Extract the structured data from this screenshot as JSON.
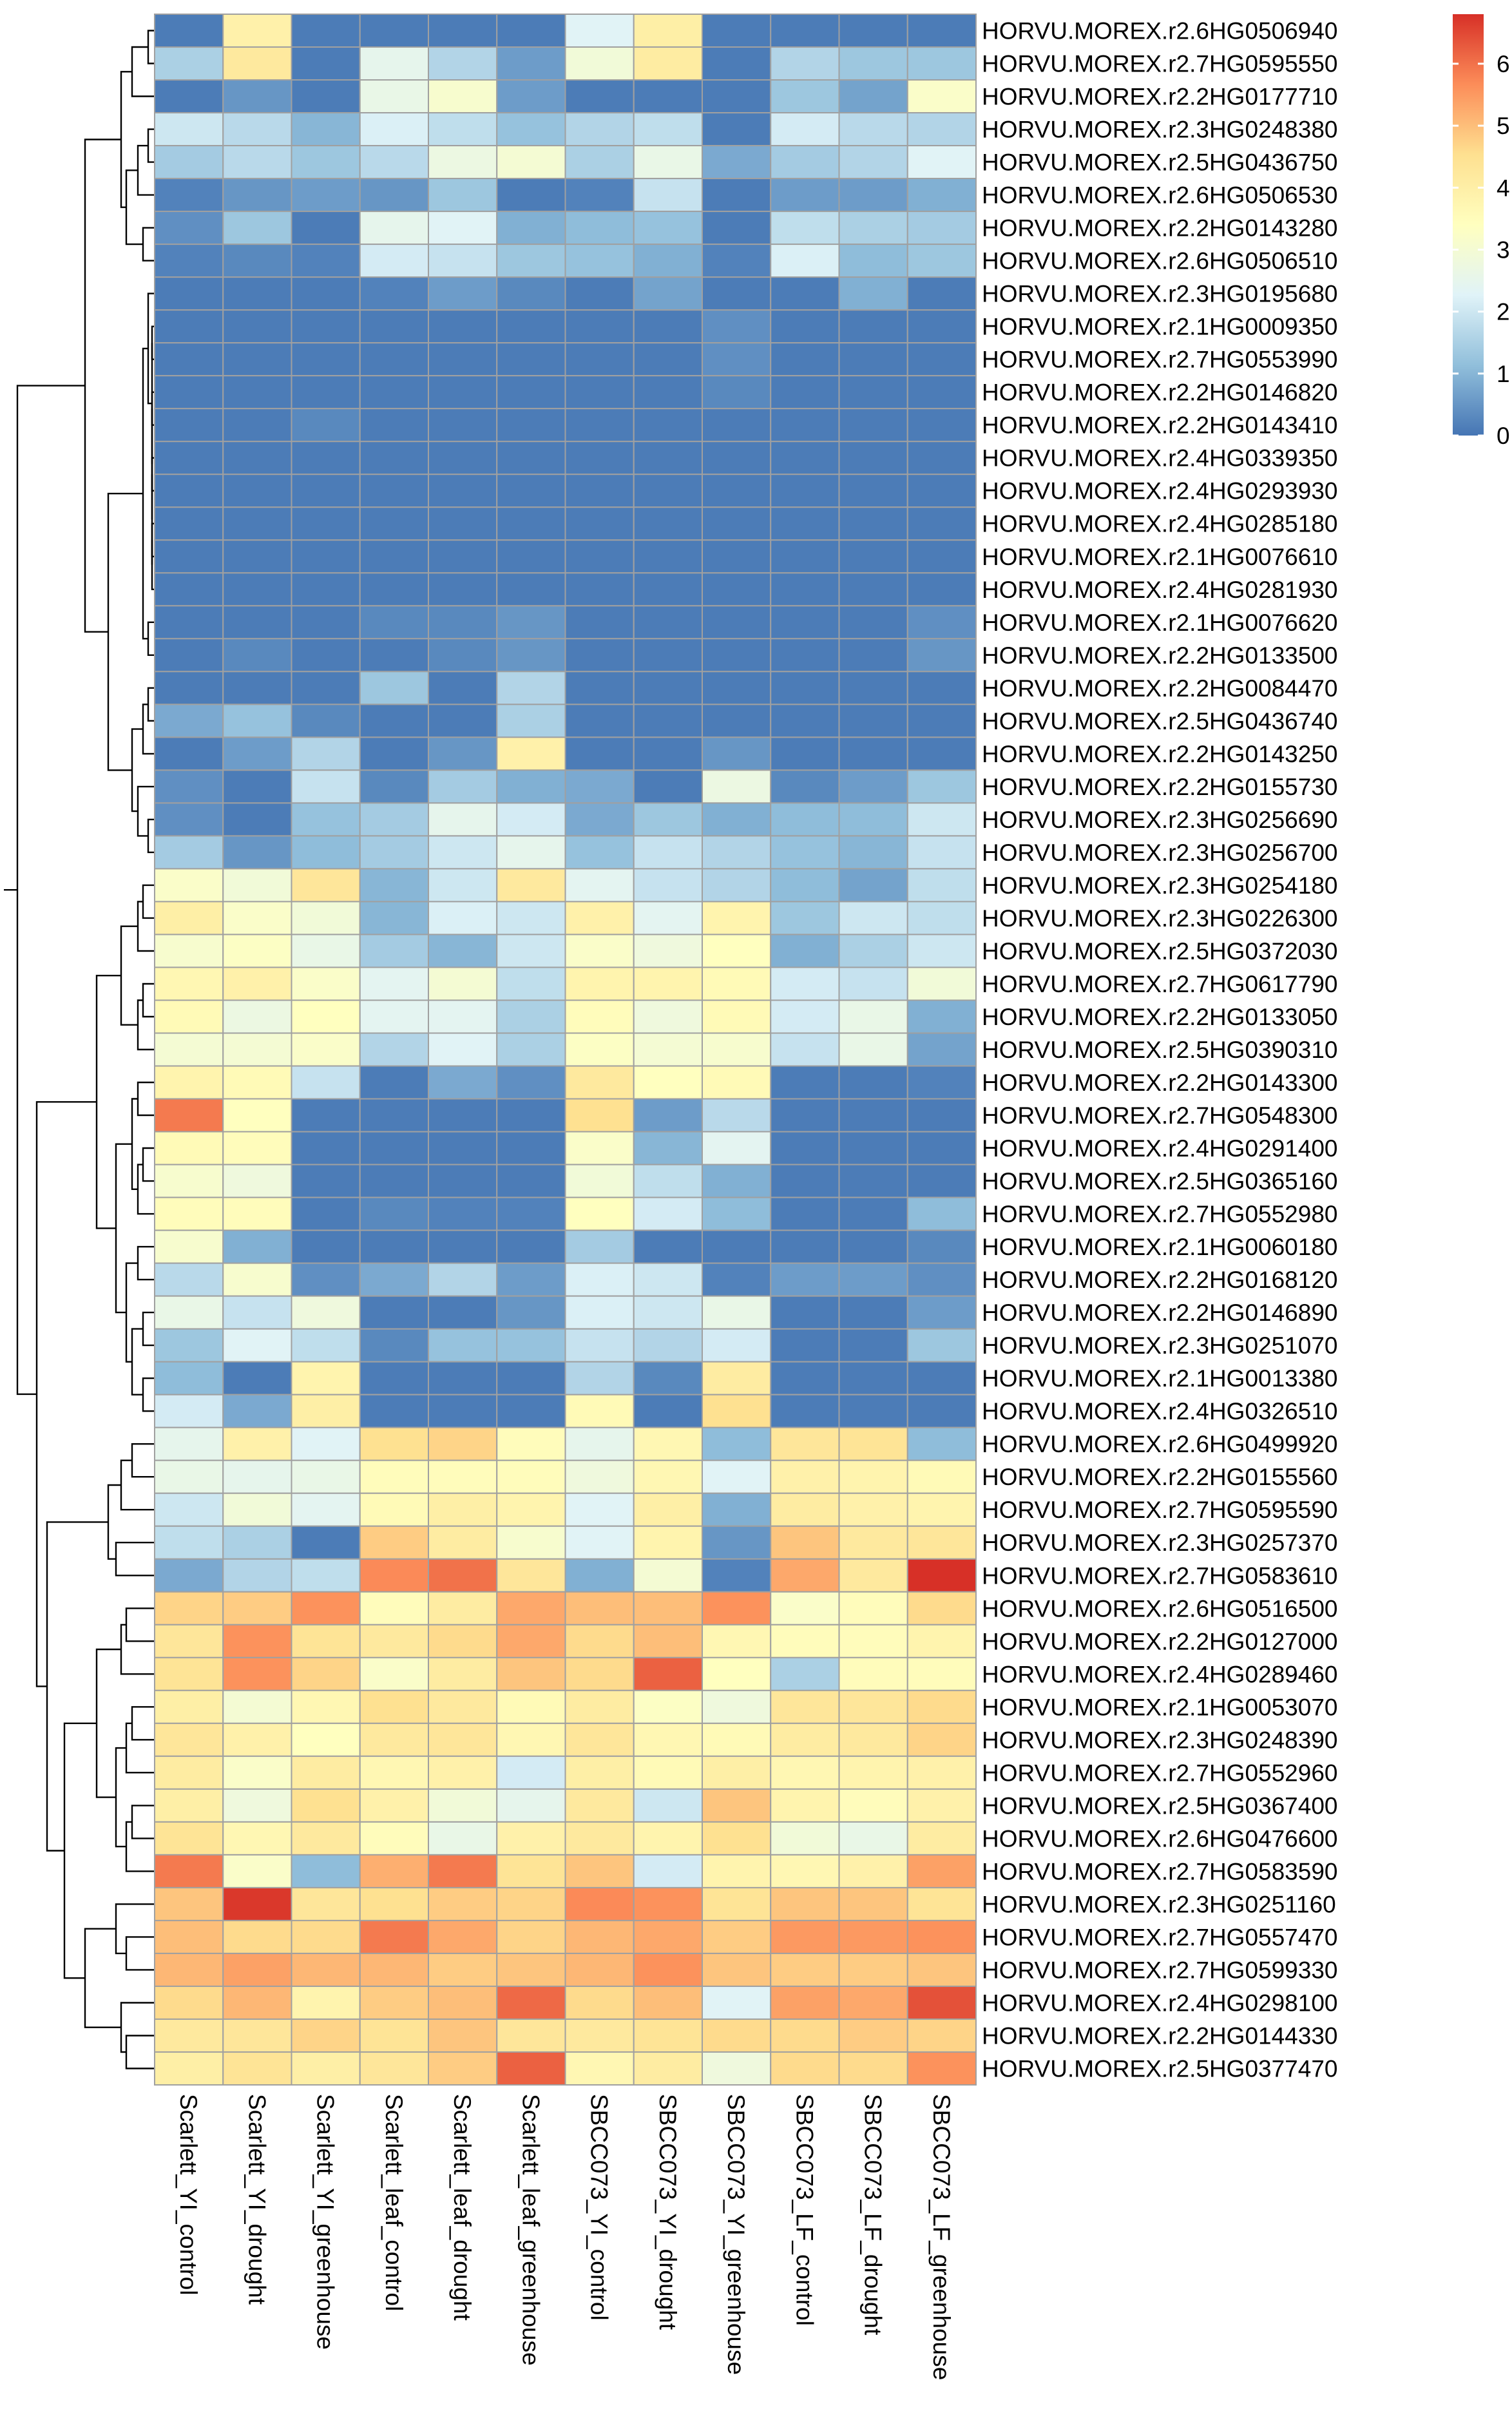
{
  "chart_data": {
    "type": "heatmap",
    "title": "",
    "xlabel": "",
    "ylabel": "",
    "columns": [
      "Scarlett_YI_control",
      "Scarlett_YI_drought",
      "Scarlett_YI_greenhouse",
      "Scarlett_leaf_control",
      "Scarlett_leaf_drought",
      "Scarlett_leaf_greenhouse",
      "SBCC073_YI_control",
      "SBCC073_YI_drought",
      "SBCC073_YI_greenhouse",
      "SBCC073_LF_control",
      "SBCC073_LF_drought",
      "SBCC073_LF_greenhouse"
    ],
    "rows": [
      "HORVU.MOREX.r2.6HG0506940",
      "HORVU.MOREX.r2.7HG0595550",
      "HORVU.MOREX.r2.2HG0177710",
      "HORVU.MOREX.r2.3HG0248380",
      "HORVU.MOREX.r2.5HG0436750",
      "HORVU.MOREX.r2.6HG0506530",
      "HORVU.MOREX.r2.2HG0143280",
      "HORVU.MOREX.r2.6HG0506510",
      "HORVU.MOREX.r2.3HG0195680",
      "HORVU.MOREX.r2.1HG0009350",
      "HORVU.MOREX.r2.7HG0553990",
      "HORVU.MOREX.r2.2HG0146820",
      "HORVU.MOREX.r2.2HG0143410",
      "HORVU.MOREX.r2.4HG0339350",
      "HORVU.MOREX.r2.4HG0293930",
      "HORVU.MOREX.r2.4HG0285180",
      "HORVU.MOREX.r2.1HG0076610",
      "HORVU.MOREX.r2.4HG0281930",
      "HORVU.MOREX.r2.1HG0076620",
      "HORVU.MOREX.r2.2HG0133500",
      "HORVU.MOREX.r2.2HG0084470",
      "HORVU.MOREX.r2.5HG0436740",
      "HORVU.MOREX.r2.2HG0143250",
      "HORVU.MOREX.r2.2HG0155730",
      "HORVU.MOREX.r2.3HG0256690",
      "HORVU.MOREX.r2.3HG0256700",
      "HORVU.MOREX.r2.3HG0254180",
      "HORVU.MOREX.r2.3HG0226300",
      "HORVU.MOREX.r2.5HG0372030",
      "HORVU.MOREX.r2.7HG0617790",
      "HORVU.MOREX.r2.2HG0133050",
      "HORVU.MOREX.r2.5HG0390310",
      "HORVU.MOREX.r2.2HG0143300",
      "HORVU.MOREX.r2.7HG0548300",
      "HORVU.MOREX.r2.4HG0291400",
      "HORVU.MOREX.r2.5HG0365160",
      "HORVU.MOREX.r2.7HG0552980",
      "HORVU.MOREX.r2.1HG0060180",
      "HORVU.MOREX.r2.2HG0168120",
      "HORVU.MOREX.r2.2HG0146890",
      "HORVU.MOREX.r2.3HG0251070",
      "HORVU.MOREX.r2.1HG0013380",
      "HORVU.MOREX.r2.4HG0326510",
      "HORVU.MOREX.r2.6HG0499920",
      "HORVU.MOREX.r2.2HG0155560",
      "HORVU.MOREX.r2.7HG0595590",
      "HORVU.MOREX.r2.3HG0257370",
      "HORVU.MOREX.r2.7HG0583610",
      "HORVU.MOREX.r2.6HG0516500",
      "HORVU.MOREX.r2.2HG0127000",
      "HORVU.MOREX.r2.4HG0289460",
      "HORVU.MOREX.r2.1HG0053070",
      "HORVU.MOREX.r2.3HG0248390",
      "HORVU.MOREX.r2.7HG0552960",
      "HORVU.MOREX.r2.5HG0367400",
      "HORVU.MOREX.r2.6HG0476600",
      "HORVU.MOREX.r2.7HG0583590",
      "HORVU.MOREX.r2.3HG0251160",
      "HORVU.MOREX.r2.7HG0557470",
      "HORVU.MOREX.r2.7HG0599330",
      "HORVU.MOREX.r2.4HG0298100",
      "HORVU.MOREX.r2.2HG0144330",
      "HORVU.MOREX.r2.5HG0377470"
    ],
    "values": [
      [
        0.1,
        3.9,
        0.1,
        0.1,
        0.1,
        0.1,
        2.3,
        4.0,
        0.1,
        0.1,
        0.1,
        0.1
      ],
      [
        1.5,
        4.2,
        0.1,
        2.5,
        1.6,
        0.6,
        2.9,
        4.1,
        0.1,
        1.6,
        1.3,
        1.3
      ],
      [
        0.1,
        0.5,
        0.1,
        2.6,
        3.1,
        0.6,
        0.1,
        0.1,
        0.1,
        1.3,
        0.7,
        3.2
      ],
      [
        2.0,
        1.7,
        1.0,
        2.2,
        1.8,
        1.2,
        1.6,
        1.8,
        0.1,
        2.1,
        1.7,
        1.6
      ],
      [
        1.4,
        1.7,
        1.3,
        1.7,
        2.7,
        3.0,
        1.5,
        2.6,
        0.8,
        1.4,
        1.6,
        2.3
      ],
      [
        0.2,
        0.5,
        0.6,
        0.5,
        1.3,
        0.1,
        0.2,
        1.9,
        0.1,
        0.6,
        0.6,
        0.9
      ],
      [
        0.4,
        1.3,
        0.1,
        2.5,
        2.3,
        0.9,
        1.1,
        1.2,
        0.1,
        1.8,
        1.5,
        1.4
      ],
      [
        0.2,
        0.3,
        0.2,
        2.1,
        1.9,
        1.3,
        1.2,
        0.9,
        0.2,
        2.2,
        1.1,
        1.3
      ],
      [
        0.1,
        0.1,
        0.1,
        0.2,
        0.6,
        0.3,
        0.1,
        0.7,
        0.1,
        0.1,
        0.9,
        0.1
      ],
      [
        0.1,
        0.1,
        0.1,
        0.1,
        0.1,
        0.1,
        0.1,
        0.1,
        0.4,
        0.1,
        0.1,
        0.1
      ],
      [
        0.1,
        0.1,
        0.1,
        0.1,
        0.1,
        0.1,
        0.1,
        0.1,
        0.4,
        0.1,
        0.1,
        0.1
      ],
      [
        0.1,
        0.1,
        0.1,
        0.1,
        0.1,
        0.1,
        0.1,
        0.1,
        0.3,
        0.1,
        0.1,
        0.1
      ],
      [
        0.1,
        0.1,
        0.3,
        0.1,
        0.1,
        0.1,
        0.1,
        0.1,
        0.1,
        0.1,
        0.1,
        0.1
      ],
      [
        0.1,
        0.1,
        0.1,
        0.1,
        0.1,
        0.1,
        0.1,
        0.1,
        0.1,
        0.1,
        0.1,
        0.1
      ],
      [
        0.1,
        0.1,
        0.1,
        0.1,
        0.1,
        0.1,
        0.1,
        0.1,
        0.1,
        0.1,
        0.1,
        0.1
      ],
      [
        0.1,
        0.1,
        0.1,
        0.1,
        0.1,
        0.1,
        0.1,
        0.1,
        0.1,
        0.1,
        0.1,
        0.1
      ],
      [
        0.1,
        0.1,
        0.1,
        0.1,
        0.1,
        0.1,
        0.1,
        0.1,
        0.1,
        0.1,
        0.1,
        0.1
      ],
      [
        0.1,
        0.1,
        0.1,
        0.1,
        0.1,
        0.1,
        0.1,
        0.1,
        0.1,
        0.1,
        0.1,
        0.1
      ],
      [
        0.1,
        0.1,
        0.1,
        0.3,
        0.3,
        0.5,
        0.1,
        0.1,
        0.1,
        0.1,
        0.1,
        0.4
      ],
      [
        0.1,
        0.3,
        0.1,
        0.1,
        0.3,
        0.5,
        0.1,
        0.1,
        0.1,
        0.1,
        0.1,
        0.5
      ],
      [
        0.1,
        0.1,
        0.1,
        1.3,
        0.1,
        1.6,
        0.1,
        0.1,
        0.1,
        0.1,
        0.1,
        0.1
      ],
      [
        0.8,
        1.2,
        0.3,
        0.1,
        0.1,
        1.5,
        0.1,
        0.1,
        0.1,
        0.1,
        0.1,
        0.1
      ],
      [
        0.1,
        0.6,
        1.6,
        0.1,
        0.5,
        3.9,
        0.1,
        0.1,
        0.5,
        0.1,
        0.1,
        0.1
      ],
      [
        0.4,
        0.1,
        1.9,
        0.3,
        1.4,
        0.9,
        0.8,
        0.1,
        2.7,
        0.3,
        0.6,
        1.3
      ],
      [
        0.4,
        0.1,
        1.2,
        1.4,
        2.5,
        2.1,
        0.8,
        1.3,
        0.9,
        1.1,
        1.1,
        2.0
      ],
      [
        1.4,
        0.5,
        1.1,
        1.4,
        2.0,
        2.5,
        1.2,
        1.9,
        1.6,
        1.2,
        1.0,
        1.9
      ],
      [
        3.2,
        2.9,
        4.3,
        1.0,
        2.0,
        4.2,
        2.4,
        1.9,
        1.6,
        1.1,
        0.7,
        1.8
      ],
      [
        4.0,
        3.2,
        2.9,
        1.0,
        2.2,
        2.0,
        3.9,
        2.4,
        3.8,
        1.3,
        2.0,
        1.8
      ],
      [
        3.1,
        3.3,
        2.6,
        1.4,
        1.0,
        2.0,
        3.2,
        2.8,
        3.4,
        0.9,
        1.5,
        2.0
      ],
      [
        3.7,
        3.9,
        3.2,
        2.4,
        3.0,
        1.8,
        3.8,
        3.8,
        3.6,
        2.1,
        1.9,
        2.9
      ],
      [
        3.6,
        2.7,
        3.4,
        2.4,
        2.4,
        1.5,
        3.5,
        2.8,
        3.6,
        2.1,
        2.6,
        0.9
      ],
      [
        3.0,
        3.0,
        3.2,
        1.6,
        2.3,
        1.5,
        3.3,
        3.0,
        3.1,
        1.9,
        2.6,
        0.7
      ],
      [
        3.8,
        3.6,
        1.9,
        0.1,
        0.8,
        0.4,
        4.2,
        3.4,
        3.6,
        0.1,
        0.1,
        0.2
      ],
      [
        5.9,
        3.4,
        0.1,
        0.1,
        0.1,
        0.1,
        4.5,
        0.6,
        1.7,
        0.1,
        0.1,
        0.1
      ],
      [
        3.6,
        3.5,
        0.1,
        0.1,
        0.1,
        0.1,
        3.2,
        1.0,
        2.4,
        0.1,
        0.1,
        0.1
      ],
      [
        3.1,
        2.8,
        0.1,
        0.1,
        0.1,
        0.1,
        2.9,
        1.8,
        0.9,
        0.1,
        0.1,
        0.1
      ],
      [
        3.5,
        3.5,
        0.1,
        0.3,
        0.2,
        0.2,
        3.4,
        2.1,
        1.1,
        0.1,
        0.1,
        1.1
      ],
      [
        3.1,
        0.9,
        0.1,
        0.1,
        0.1,
        0.1,
        1.4,
        0.1,
        0.1,
        0.1,
        0.1,
        0.3
      ],
      [
        1.7,
        3.1,
        0.4,
        0.8,
        1.6,
        0.6,
        2.2,
        2.0,
        0.2,
        0.6,
        0.6,
        0.4
      ],
      [
        2.6,
        1.9,
        2.8,
        0.1,
        0.1,
        0.5,
        2.2,
        2.0,
        2.6,
        0.1,
        0.1,
        0.6
      ],
      [
        1.3,
        2.3,
        1.8,
        0.3,
        1.2,
        1.2,
        1.9,
        1.6,
        2.1,
        0.1,
        0.1,
        1.3
      ],
      [
        1.1,
        0.1,
        3.8,
        0.1,
        0.1,
        0.1,
        1.6,
        0.3,
        4.1,
        0.1,
        0.1,
        0.1
      ],
      [
        2.1,
        0.8,
        4.0,
        0.1,
        0.1,
        0.1,
        3.6,
        0.1,
        4.5,
        0.1,
        0.1,
        0.1
      ],
      [
        2.5,
        3.9,
        2.3,
        4.5,
        4.7,
        3.5,
        2.5,
        3.7,
        1.1,
        4.3,
        4.4,
        1.1
      ],
      [
        2.6,
        2.5,
        2.6,
        3.5,
        3.5,
        3.5,
        2.8,
        3.7,
        2.3,
        3.9,
        3.8,
        3.6
      ],
      [
        2.0,
        2.9,
        2.4,
        3.6,
        4.0,
        3.8,
        2.3,
        4.0,
        0.9,
        4.1,
        3.9,
        3.8
      ],
      [
        1.8,
        1.5,
        0.1,
        4.8,
        4.1,
        3.1,
        2.3,
        3.8,
        0.5,
        4.9,
        4.2,
        4.3
      ],
      [
        0.8,
        1.6,
        1.8,
        5.7,
        6.0,
        4.3,
        0.9,
        3.0,
        0.2,
        5.3,
        4.2,
        6.8
      ],
      [
        4.7,
        4.8,
        5.6,
        3.5,
        4.1,
        5.3,
        5.0,
        5.0,
        5.6,
        3.2,
        3.5,
        4.6
      ],
      [
        4.3,
        5.6,
        4.4,
        4.2,
        4.6,
        5.3,
        4.6,
        5.0,
        3.7,
        3.5,
        3.5,
        3.8
      ],
      [
        4.4,
        5.6,
        4.7,
        3.2,
        4.1,
        4.9,
        4.6,
        6.2,
        3.4,
        1.5,
        3.5,
        3.5
      ],
      [
        4.0,
        3.0,
        3.7,
        4.5,
        4.2,
        3.6,
        4.1,
        3.3,
        2.8,
        4.3,
        4.3,
        4.6
      ],
      [
        4.3,
        3.9,
        3.4,
        4.2,
        4.3,
        3.7,
        4.3,
        3.7,
        3.6,
        4.1,
        4.2,
        4.7
      ],
      [
        4.1,
        3.2,
        4.1,
        3.7,
        3.9,
        2.1,
        4.0,
        3.6,
        4.0,
        3.7,
        3.8,
        3.9
      ],
      [
        4.0,
        2.8,
        4.5,
        3.9,
        2.9,
        2.5,
        4.2,
        2.0,
        4.9,
        3.8,
        3.5,
        3.9
      ],
      [
        4.4,
        3.7,
        4.2,
        3.5,
        2.6,
        3.9,
        4.2,
        3.8,
        4.5,
        2.9,
        2.6,
        4.1
      ],
      [
        5.9,
        3.2,
        1.1,
        5.2,
        5.9,
        4.4,
        4.9,
        2.1,
        3.8,
        3.7,
        3.9,
        5.4
      ],
      [
        4.9,
        6.7,
        4.3,
        4.5,
        4.8,
        4.7,
        5.7,
        5.6,
        4.4,
        4.9,
        4.9,
        4.4
      ],
      [
        5.0,
        4.6,
        4.6,
        5.9,
        5.3,
        4.7,
        5.1,
        5.3,
        4.8,
        5.5,
        5.5,
        5.6
      ],
      [
        5.1,
        5.4,
        5.1,
        5.1,
        4.8,
        4.9,
        5.1,
        5.6,
        4.9,
        4.8,
        4.8,
        4.9
      ],
      [
        4.6,
        5.1,
        3.8,
        4.8,
        5.0,
        6.1,
        4.6,
        5.0,
        2.3,
        5.4,
        5.3,
        6.4
      ],
      [
        4.2,
        4.3,
        4.7,
        4.4,
        4.9,
        4.3,
        4.2,
        4.4,
        4.6,
        4.6,
        4.8,
        4.7
      ],
      [
        4.0,
        4.4,
        4.0,
        4.3,
        4.8,
        6.2,
        3.7,
        4.1,
        2.8,
        4.6,
        4.6,
        5.6
      ]
    ],
    "color_scale": {
      "min": 0,
      "max": 6.8,
      "ticks": [
        0,
        1,
        2,
        3,
        4,
        5,
        6
      ],
      "stops": [
        "#4575B4",
        "#91BFDB",
        "#E0F3F8",
        "#FFFFBF",
        "#FEE090",
        "#FC8D59",
        "#D73027"
      ]
    },
    "row_dendrogram": true,
    "col_dendrogram": false,
    "cell_border_color": "#A0A0A0",
    "legend_position": "top-right"
  }
}
